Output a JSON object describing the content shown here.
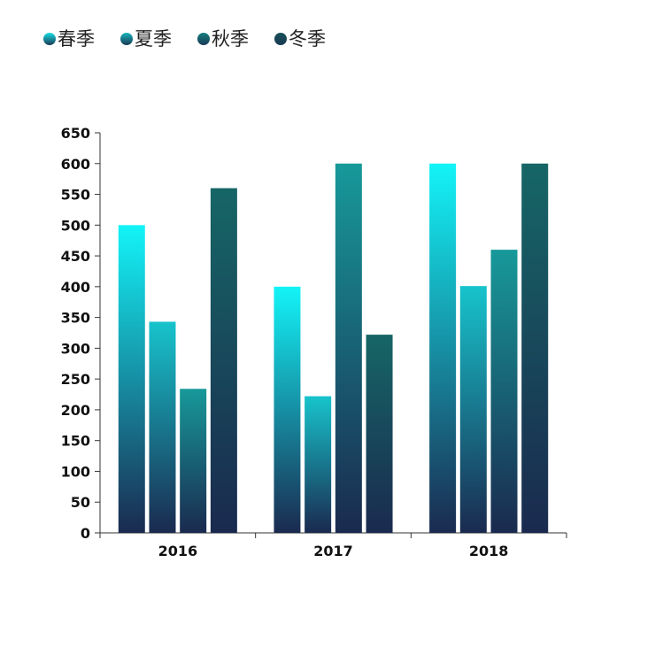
{
  "chart_data": {
    "type": "bar",
    "title": "",
    "xlabel": "",
    "ylabel": "",
    "categories": [
      "2016",
      "2017",
      "2018"
    ],
    "series": [
      {
        "name": "春季",
        "values": [
          500,
          400,
          600
        ]
      },
      {
        "name": "夏季",
        "values": [
          343,
          222,
          401
        ]
      },
      {
        "name": "秋季",
        "values": [
          234,
          600,
          460
        ]
      },
      {
        "name": "冬季",
        "values": [
          560,
          322,
          600
        ]
      }
    ],
    "ylim": [
      0,
      650
    ],
    "yticks": [
      0,
      50,
      100,
      150,
      200,
      250,
      300,
      350,
      400,
      450,
      500,
      550,
      600,
      650
    ],
    "grid": false,
    "legend_position": "top-left"
  },
  "colors": {
    "series_top": [
      "#13f4f8",
      "#17c4cc",
      "#17999a",
      "#166666"
    ],
    "bar_bottom": "#1a2a4f",
    "legend_marker_top": [
      "#19dde5",
      "#17b4bb",
      "#167f80",
      "#155058"
    ],
    "legend_marker_bottom": "#1a3a55"
  }
}
